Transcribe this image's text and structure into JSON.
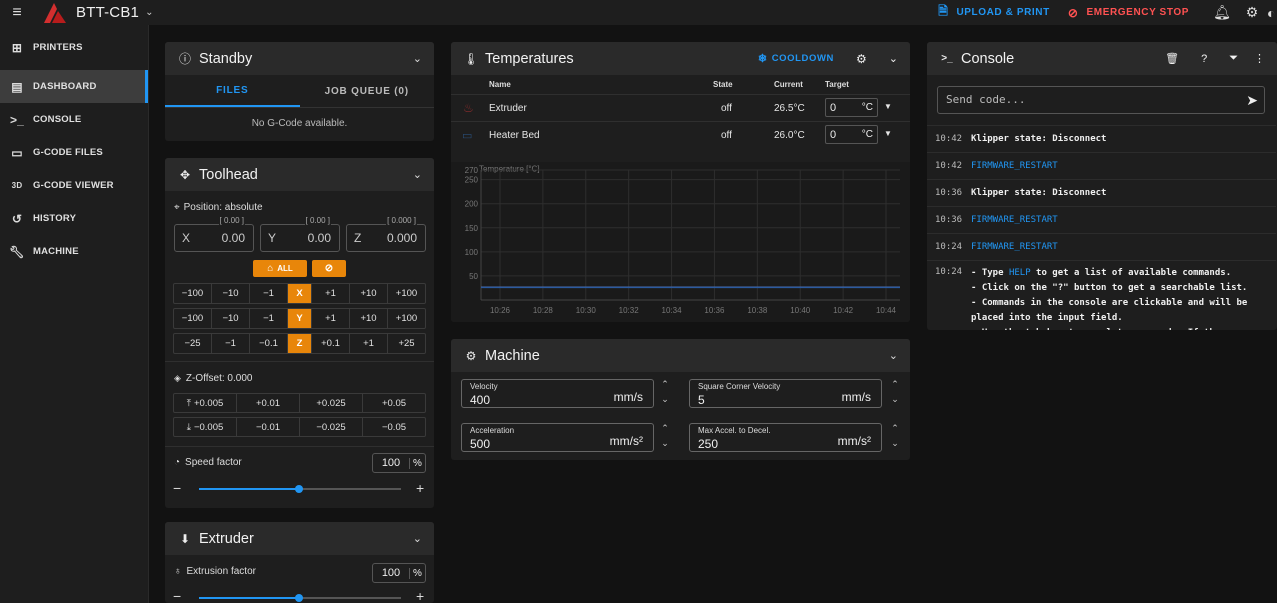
{
  "app": {
    "title": "BTT-CB1"
  },
  "toolbar": {
    "upload_label": "UPLOAD & PRINT",
    "estop_label": "EMERGENCY STOP"
  },
  "nav": [
    {
      "label": "PRINTERS",
      "icon": "grid-icon"
    },
    {
      "label": "DASHBOARD",
      "icon": "monitor-icon",
      "active": true
    },
    {
      "label": "CONSOLE",
      "icon": "terminal-icon"
    },
    {
      "label": "G-CODE FILES",
      "icon": "file-icon"
    },
    {
      "label": "G-CODE VIEWER",
      "icon": "3d-icon"
    },
    {
      "label": "HISTORY",
      "icon": "history-icon"
    },
    {
      "label": "MACHINE",
      "icon": "wrench-icon"
    }
  ],
  "standby": {
    "title": "Standby",
    "tabs": [
      "FILES",
      "JOB QUEUE (0)"
    ],
    "empty_text": "No G-Code available."
  },
  "toolhead": {
    "title": "Toolhead",
    "position_label": "Position: absolute",
    "axes": [
      {
        "axis": "X",
        "requested": "[ 0.00 ]",
        "value": "0.00"
      },
      {
        "axis": "Y",
        "requested": "[ 0.00 ]",
        "value": "0.00"
      },
      {
        "axis": "Z",
        "requested": "[ 0.000 ]",
        "value": "0.000"
      }
    ],
    "home_all_label": "ALL",
    "jog_x": [
      "−100",
      "−10",
      "−1",
      "X",
      "+1",
      "+10",
      "+100"
    ],
    "jog_y": [
      "−100",
      "−10",
      "−1",
      "Y",
      "+1",
      "+10",
      "+100"
    ],
    "jog_z": [
      "−25",
      "−1",
      "−0.1",
      "Z",
      "+0.1",
      "+1",
      "+25"
    ],
    "zoffset_label": "Z-Offset: 0.000",
    "zoffset_up": [
      "+0.005",
      "+0.01",
      "+0.025",
      "+0.05"
    ],
    "zoffset_down": [
      "−0.005",
      "−0.01",
      "−0.025",
      "−0.05"
    ],
    "speed_label": "Speed factor",
    "speed_value": "100",
    "speed_unit": "%"
  },
  "extruder": {
    "title": "Extruder",
    "factor_label": "Extrusion factor",
    "factor_value": "100",
    "factor_unit": "%"
  },
  "temperatures": {
    "title": "Temperatures",
    "cooldown_label": "COOLDOWN",
    "columns": [
      "Name",
      "State",
      "Current",
      "Target"
    ],
    "rows": [
      {
        "name": "Extruder",
        "state": "off",
        "current": "26.5°C",
        "target": "0",
        "unit": "°C"
      },
      {
        "name": "Heater Bed",
        "state": "off",
        "current": "26.0°C",
        "target": "0",
        "unit": "°C"
      }
    ]
  },
  "chart_data": {
    "type": "line",
    "ylabel": "Temperature [°C]",
    "ylim": [
      0,
      270
    ],
    "yticks": [
      270,
      250,
      200,
      150,
      100,
      50
    ],
    "xticks": [
      "10:26",
      "10:28",
      "10:30",
      "10:32",
      "10:34",
      "10:36",
      "10:38",
      "10:40",
      "10:42",
      "10:44"
    ],
    "series": [
      {
        "values": [
          26.5,
          26.5,
          26.5,
          26.5,
          26.5,
          26.5,
          26.5,
          26.5,
          26.5,
          26.5
        ]
      },
      {
        "values": [
          26.0,
          26.0,
          26.0,
          26.0,
          26.0,
          26.0,
          26.0,
          26.0,
          26.0,
          26.0
        ]
      }
    ],
    "grid": true
  },
  "machine": {
    "title": "Machine",
    "fields": [
      {
        "label": "Velocity",
        "value": "400",
        "unit": "mm/s"
      },
      {
        "label": "Square Corner Velocity",
        "value": "5",
        "unit": "mm/s"
      },
      {
        "label": "Acceleration",
        "value": "500",
        "unit": "mm/s²"
      },
      {
        "label": "Max Accel. to Decel.",
        "value": "250",
        "unit": "mm/s²"
      }
    ]
  },
  "console": {
    "title": "Console",
    "placeholder": "Send code...",
    "lines": [
      {
        "time": "10:42",
        "text": "Klipper state: Disconnect",
        "link": false
      },
      {
        "time": "10:42",
        "text": "FIRMWARE_RESTART",
        "link": true
      },
      {
        "time": "10:36",
        "text": "Klipper state: Disconnect",
        "link": false
      },
      {
        "time": "10:36",
        "text": "FIRMWARE_RESTART",
        "link": true
      },
      {
        "time": "10:24",
        "text": "FIRMWARE_RESTART",
        "link": true
      }
    ],
    "help_time": "10:24",
    "help_prefix": "- Type ",
    "help_link": "HELP",
    "help_rest": " to get a list of available commands.\n- Click on the \"?\" button to get a searchable list.\n- Commands in the console are clickable and will be placed into the input field.\n- Use the tab key to complete commands. If the"
  },
  "colors": {
    "accent": "#2196f3",
    "orange": "#e8860a",
    "estop": "#ff5252"
  }
}
